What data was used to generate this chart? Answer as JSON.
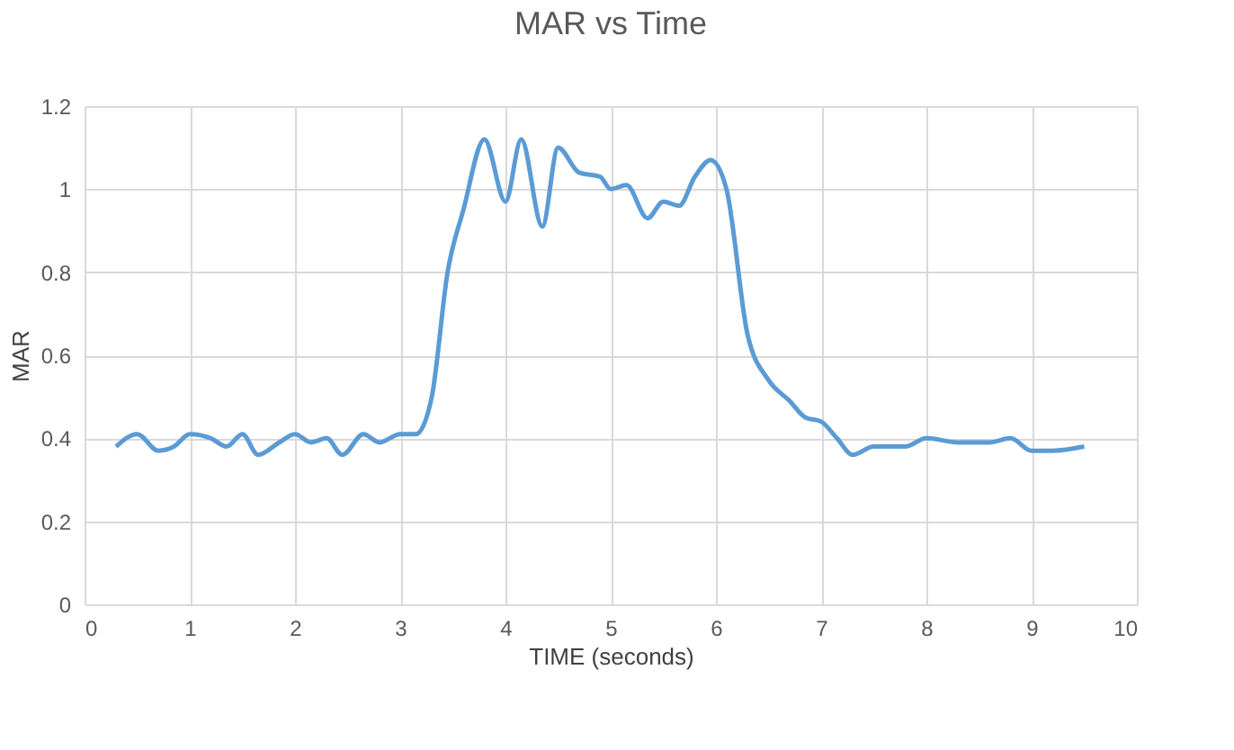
{
  "chart_data": {
    "type": "line",
    "title": "MAR vs Time",
    "xlabel": "TIME (seconds)",
    "ylabel": "MAR",
    "x": [
      0.3,
      0.5,
      0.7,
      0.85,
      1.0,
      1.2,
      1.35,
      1.5,
      1.65,
      1.85,
      2.0,
      2.15,
      2.3,
      2.45,
      2.65,
      2.8,
      3.0,
      3.15,
      3.3,
      3.45,
      3.6,
      3.8,
      4.0,
      4.15,
      4.35,
      4.5,
      4.7,
      4.9,
      5.0,
      5.15,
      5.35,
      5.5,
      5.65,
      5.8,
      5.95,
      6.1,
      6.3,
      6.5,
      6.7,
      6.85,
      7.0,
      7.15,
      7.3,
      7.5,
      7.8,
      8.0,
      8.3,
      8.6,
      8.8,
      9.0,
      9.2,
      9.5
    ],
    "series": [
      {
        "color": "#5b9bd5",
        "values": [
          0.38,
          0.41,
          0.37,
          0.38,
          0.41,
          0.4,
          0.38,
          0.41,
          0.36,
          0.39,
          0.41,
          0.39,
          0.4,
          0.36,
          0.41,
          0.39,
          0.41,
          0.41,
          0.5,
          0.8,
          0.95,
          1.12,
          0.97,
          1.12,
          0.91,
          1.1,
          1.04,
          1.03,
          1.0,
          1.01,
          0.93,
          0.97,
          0.96,
          1.03,
          1.07,
          1.0,
          0.65,
          0.54,
          0.49,
          0.45,
          0.44,
          0.4,
          0.36,
          0.38,
          0.38,
          0.4,
          0.39,
          0.39,
          0.4,
          0.37,
          0.37,
          0.38
        ]
      }
    ],
    "xlim": [
      0,
      10
    ],
    "xticks": [
      0,
      1,
      2,
      3,
      4,
      5,
      6,
      7,
      8,
      9,
      10
    ],
    "ylim": [
      0,
      1.2
    ],
    "yticks": [
      0,
      0.2,
      0.4,
      0.6,
      0.8,
      1,
      1.2
    ],
    "grid": true,
    "legend": false,
    "marker": "none",
    "line_style": "solid"
  }
}
